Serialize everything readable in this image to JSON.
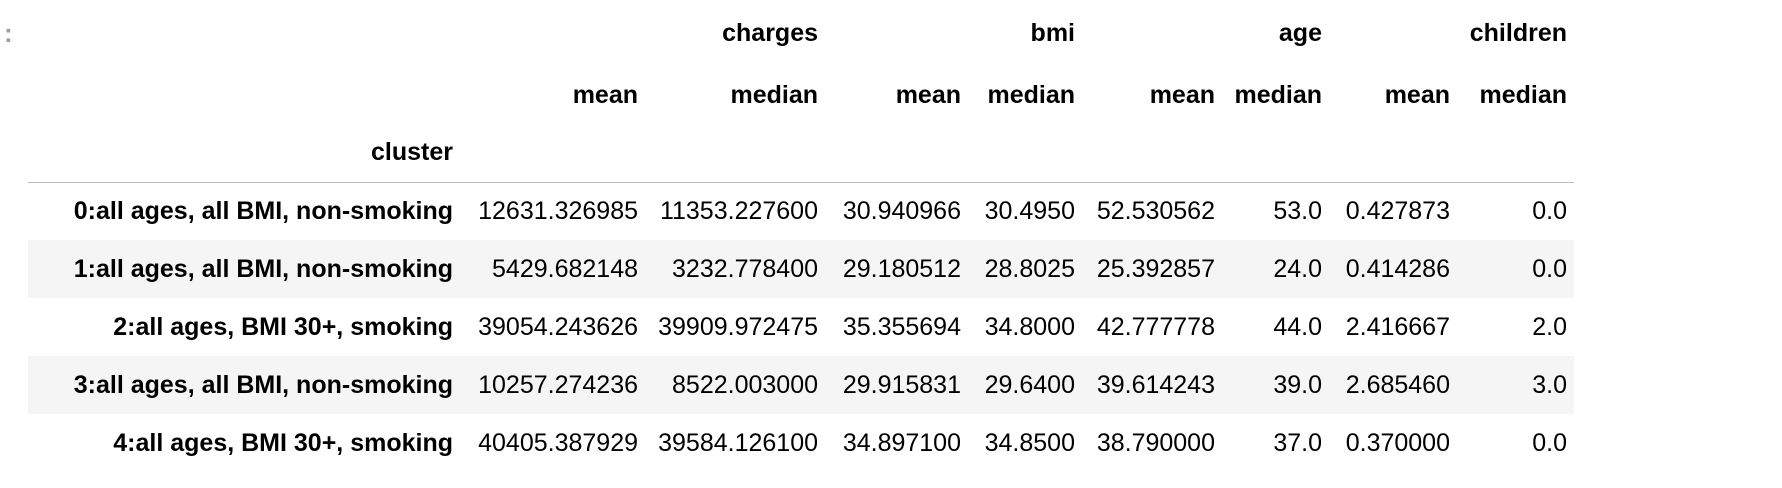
{
  "output_prompt": ":",
  "header": {
    "groups": [
      "charges",
      "bmi",
      "age",
      "children"
    ],
    "stats": [
      "mean",
      "median",
      "mean",
      "median",
      "mean",
      "median",
      "mean",
      "median"
    ],
    "index_name": "cluster"
  },
  "rows": [
    {
      "label": "0:all ages, all BMI, non-smoking",
      "values": [
        "12631.326985",
        "11353.227600",
        "30.940966",
        "30.4950",
        "52.530562",
        "53.0",
        "0.427873",
        "0.0"
      ]
    },
    {
      "label": "1:all ages, all BMI, non-smoking",
      "values": [
        "5429.682148",
        "3232.778400",
        "29.180512",
        "28.8025",
        "25.392857",
        "24.0",
        "0.414286",
        "0.0"
      ]
    },
    {
      "label": "2:all ages, BMI 30+, smoking",
      "values": [
        "39054.243626",
        "39909.972475",
        "35.355694",
        "34.8000",
        "42.777778",
        "44.0",
        "2.416667",
        "2.0"
      ]
    },
    {
      "label": "3:all ages, all BMI, non-smoking",
      "values": [
        "10257.274236",
        "8522.003000",
        "29.915831",
        "29.6400",
        "39.614243",
        "39.0",
        "2.685460",
        "3.0"
      ]
    },
    {
      "label": "4:all ages, BMI 30+, smoking",
      "values": [
        "40405.387929",
        "39584.126100",
        "34.897100",
        "34.8500",
        "38.790000",
        "37.0",
        "0.370000",
        "0.0"
      ]
    }
  ]
}
